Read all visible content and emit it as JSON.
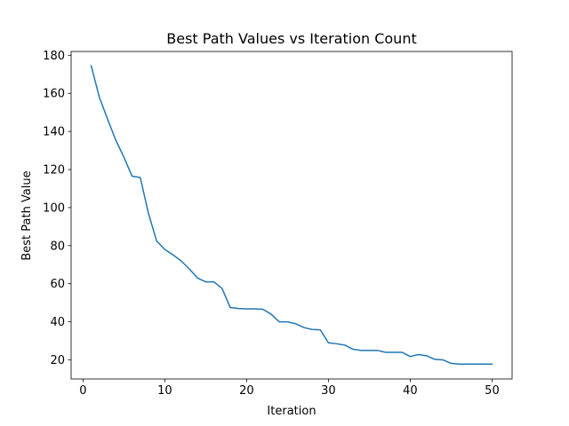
{
  "chart_data": {
    "type": "line",
    "title": "Best Path Values vs Iteration Count",
    "xlabel": "Iteration",
    "ylabel": "Best Path Value",
    "xlim": [
      -1.45,
      52.45
    ],
    "ylim": [
      10,
      182
    ],
    "xticks": [
      0,
      10,
      20,
      30,
      40,
      50
    ],
    "yticks": [
      20,
      40,
      60,
      80,
      100,
      120,
      140,
      160,
      180
    ],
    "grid": false,
    "legend": false,
    "series": [
      {
        "color": "#1f77b4",
        "x": [
          1,
          2,
          3,
          4,
          5,
          6,
          7,
          8,
          9,
          10,
          11,
          12,
          13,
          14,
          15,
          16,
          17,
          18,
          19,
          20,
          21,
          22,
          23,
          24,
          25,
          26,
          27,
          28,
          29,
          30,
          31,
          32,
          33,
          34,
          35,
          36,
          37,
          38,
          39,
          40,
          41,
          42,
          43,
          44,
          45,
          46,
          47,
          48,
          49,
          50
        ],
        "values": [
          174.5,
          158,
          146.5,
          135.5,
          126.5,
          116.5,
          115.8,
          97,
          82.5,
          78,
          75.2,
          72,
          67.8,
          63,
          61,
          61,
          57.5,
          47.5,
          47,
          46.8,
          46.8,
          46.6,
          44,
          40,
          40,
          39,
          37,
          36,
          35.8,
          29,
          28.5,
          27.8,
          25.6,
          25,
          25,
          25,
          24,
          24,
          24,
          21.8,
          22.8,
          22.2,
          20.3,
          20,
          18.2,
          17.8,
          17.8,
          17.8,
          17.8,
          17.8
        ]
      }
    ]
  }
}
